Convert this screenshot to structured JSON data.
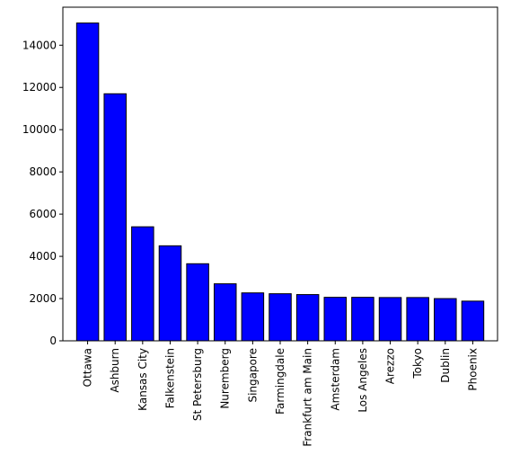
{
  "chart_data": {
    "type": "bar",
    "title": "",
    "xlabel": "",
    "ylabel": "",
    "categories": [
      "Ottawa",
      "Ashburn",
      "Kansas City",
      "Falkenstein",
      "St Petersburg",
      "Nuremberg",
      "Singapore",
      "Farmingdale",
      "Frankfurt am Main",
      "Amsterdam",
      "Los Angeles",
      "Arezzo",
      "Tokyo",
      "Dublin",
      "Phoenix"
    ],
    "values": [
      15050,
      11700,
      5400,
      4500,
      3650,
      2700,
      2270,
      2230,
      2190,
      2060,
      2060,
      2050,
      2050,
      2000,
      1880
    ],
    "ylim": [
      0,
      15800
    ],
    "yticks": [
      0,
      2000,
      4000,
      6000,
      8000,
      10000,
      12000,
      14000
    ],
    "grid": false,
    "legend": "none",
    "bar_color": "#0000ff",
    "edge_color": "#000000"
  }
}
